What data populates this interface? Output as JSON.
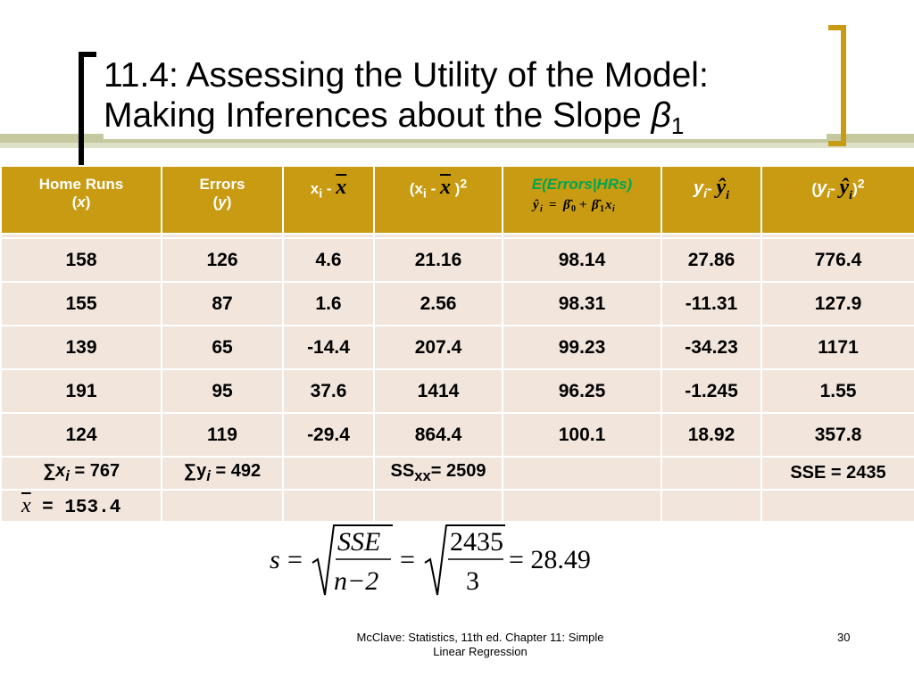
{
  "title": {
    "line1": "11.4: Assessing the Utility of the Model:",
    "line2": "Making Inferences about the Slope ",
    "beta": "β",
    "beta_sub": "1"
  },
  "headers": {
    "home_runs": "Home Runs",
    "home_runs_sym": "x",
    "errors": "Errors",
    "errors_sym": "y",
    "xi_minus": "x",
    "xi_sub": "i",
    "xbar": "x",
    "sq": "2",
    "expect": "E(Errors|HRs)",
    "y_sym": "y",
    "i_sub": "i"
  },
  "rows": [
    [
      "158",
      "126",
      "4.6",
      "21.16",
      "98.14",
      "27.86",
      "776.4"
    ],
    [
      "155",
      "87",
      "1.6",
      "2.56",
      "98.31",
      "-11.31",
      "127.9"
    ],
    [
      "139",
      "65",
      "-14.4",
      "207.4",
      "99.23",
      "-34.23",
      "1171"
    ],
    [
      "191",
      "95",
      "37.6",
      "1414",
      "96.25",
      "-1.245",
      "1.55"
    ],
    [
      "124",
      "119",
      "-29.4",
      "864.4",
      "100.1",
      "18.92",
      "357.8"
    ]
  ],
  "sums": {
    "sum_x_sym": "∑x",
    "sum_x_sub": "i",
    "sum_x_val": " = 767",
    "sum_y_sym": "∑y",
    "sum_y_sub": "i",
    "sum_y_val": " = 492",
    "ss_label": "SS",
    "ss_sub": "xx",
    "ss_val": "= 2509",
    "sse": "SSE = 2435"
  },
  "xbar_row": {
    "sym": "x",
    "val": "= 153.4"
  },
  "formula": {
    "s": "s",
    "sse": "SSE",
    "n2": "n−2",
    "num": "2435",
    "den": "3",
    "result": "= 28.49"
  },
  "footer": {
    "source": "McClave: Statistics, 11th ed. Chapter 11: Simple Linear Regression",
    "page": "30"
  }
}
